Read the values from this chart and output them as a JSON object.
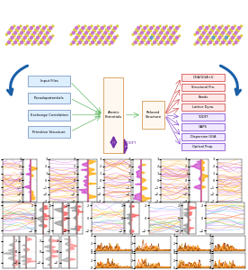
{
  "bg_color": "#ffffff",
  "crystal_colors": {
    "W": "#cc77cc",
    "Se": "#ddcc44",
    "Mn": "#6699cc"
  },
  "arrow_color": "#1a5fa8",
  "purple_arrow": "#7733aa",
  "flowchart": {
    "input_boxes": [
      "Input Files",
      "Pseudopotentials",
      "Exchange Correlation",
      "Primitive Structure"
    ],
    "output_boxes_red": [
      "GGA/GGA+U",
      "Structural Pro.",
      "Bands",
      "Lattice Dyna."
    ],
    "output_boxes_purple": [
      "TDDFT",
      "GAPS",
      "Dispersion GGA",
      "Optical Prop."
    ]
  },
  "band_colors": {
    "spin_up": "#cc44cc",
    "spin_down": "#ffaa00"
  },
  "dos_colors_row4": {
    "up": "#ff4444",
    "down": "#888888"
  },
  "band_row4_colors": [
    "#ff6666",
    "#ffaa00",
    "#44cc44",
    "#ff44ff",
    "#aaaaaa",
    "#4466ff",
    "#ff8800"
  ],
  "pdos_row5_up": "#ff8888",
  "pdos_row5_dn": "#aaaaaa",
  "optical_colors": [
    "#aa4400",
    "#cc8800",
    "#ff6600",
    "#884422",
    "#cc6600",
    "#ffaa44"
  ]
}
